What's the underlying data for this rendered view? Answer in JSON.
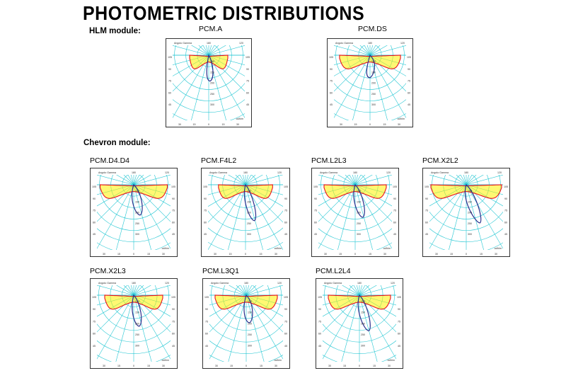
{
  "title": "PHOTOMETRIC DISTRIBUTIONS",
  "sections": [
    {
      "label": "HLM module:"
    },
    {
      "label": "Chevron module:"
    }
  ],
  "plot_text": {
    "corner_label": "Angolo Gamma",
    "top_angle": "180",
    "right_top_angle": "120",
    "left_side_angles": [
      "105",
      "90",
      "75",
      "60",
      "45"
    ],
    "bottom_angles": [
      "30",
      "15",
      "0",
      "15",
      "30"
    ],
    "radial_values": [
      "100",
      "150",
      "200",
      "250",
      "300"
    ],
    "footer": "cd/klm"
  },
  "colors": {
    "grid": "#25c7d3",
    "fill": "#fff200",
    "fill_alpha": "0.55",
    "curve_red": "#e8111c",
    "curve_blue": "#2a2f8c",
    "frame": "#333333"
  },
  "cards": [
    {
      "label": "PCM.A",
      "shape": "narrow-batwing",
      "asym": "0.15"
    },
    {
      "label": "PCM.DS",
      "shape": "wide-batwing",
      "asym": "0"
    },
    {
      "label": "PCM.D4.D4",
      "shape": "wide-flat",
      "asym": "0.35"
    },
    {
      "label": "PCM.F4L2",
      "shape": "medium-flat",
      "asym": "0.6"
    },
    {
      "label": "PCM.L2L3",
      "shape": "wide-batwing",
      "asym": "0.45"
    },
    {
      "label": "PCM.X2L2",
      "shape": "very-wide",
      "asym": "0.7"
    },
    {
      "label": "PCM.X2L3",
      "shape": "medium-wide",
      "asym": "0.35"
    },
    {
      "label": "PCM.L3Q1",
      "shape": "wide-batwing",
      "asym": "0.2"
    },
    {
      "label": "PCM.L2L4",
      "shape": "wide-batwing",
      "asym": "0.55"
    }
  ]
}
